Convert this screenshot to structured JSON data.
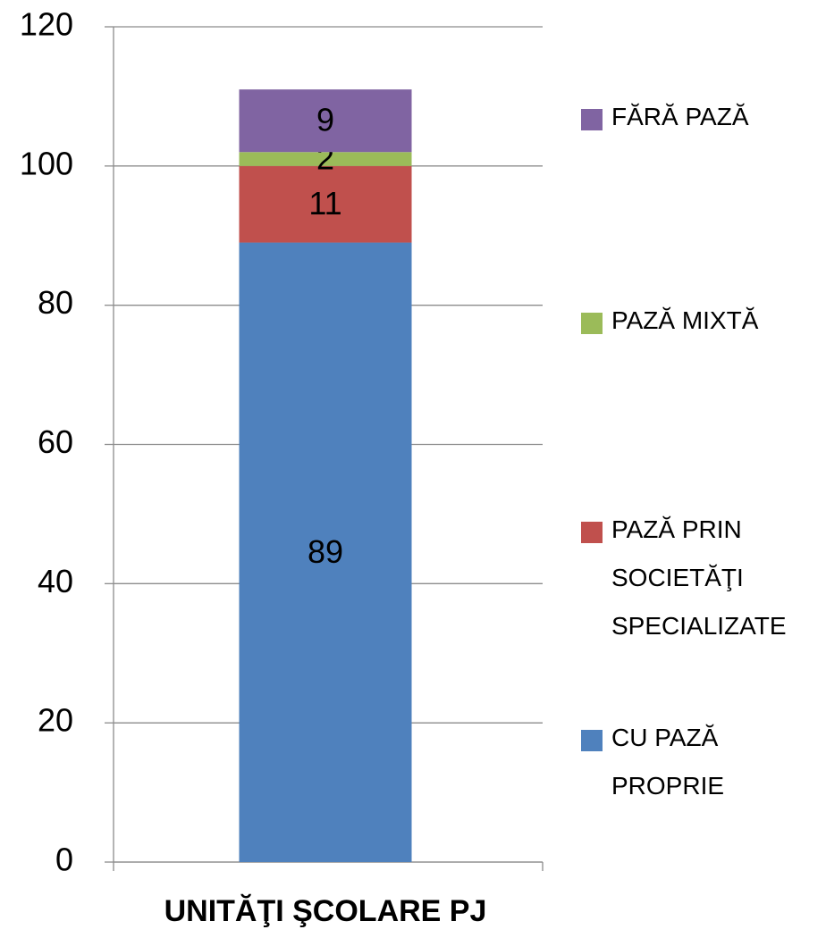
{
  "chart_data": {
    "type": "stacked_bar",
    "categories": [
      "UNITĂŢI ŞCOLARE PJ"
    ],
    "series": [
      {
        "name": "CU PAZĂ PROPRIE",
        "color": "#4f81bd",
        "values": [
          89
        ]
      },
      {
        "name": "PAZĂ PRIN SOCIETĂŢI SPECIALIZATE",
        "color": "#c0504d",
        "values": [
          11
        ]
      },
      {
        "name": "PAZĂ MIXTĂ",
        "color": "#9bbb59",
        "values": [
          2
        ]
      },
      {
        "name": "FĂRĂ PAZĂ",
        "color": "#8064a2",
        "values": [
          9
        ]
      }
    ],
    "ylim": [
      0,
      120
    ],
    "yticks": [
      0,
      20,
      40,
      60,
      80,
      100,
      120
    ],
    "grid": true,
    "legend": "right"
  }
}
